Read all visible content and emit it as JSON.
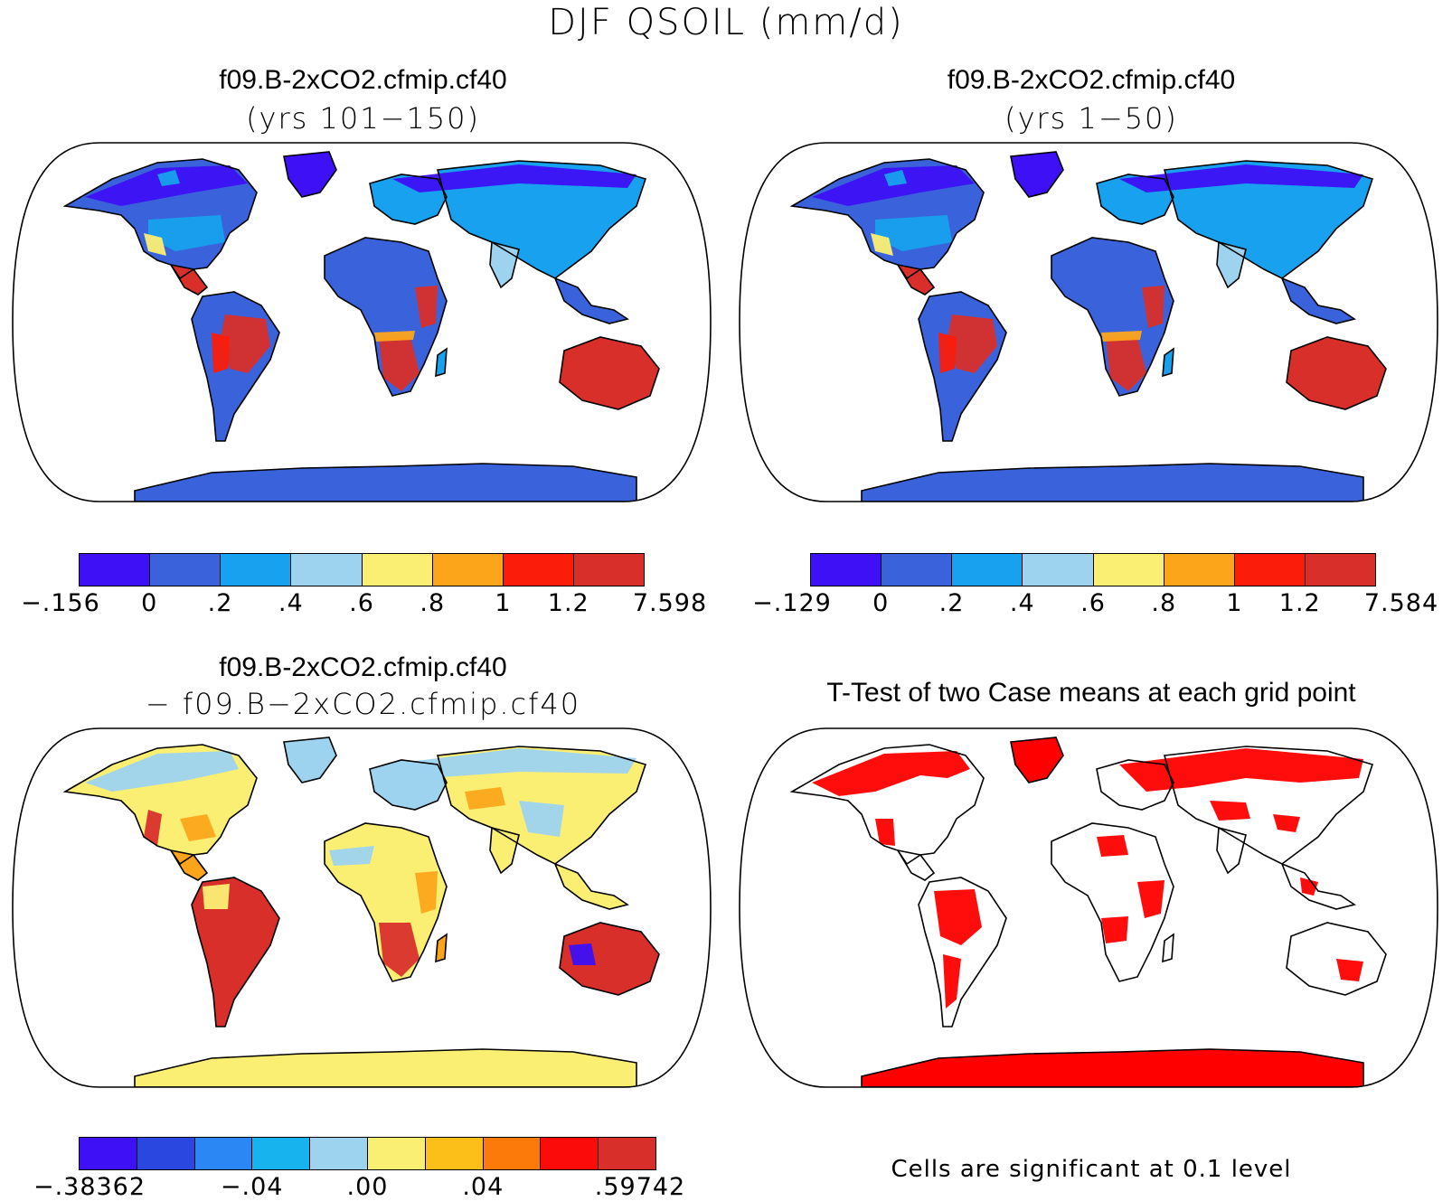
{
  "figure_title": "DJF QSOIL (mm/d)",
  "panels": [
    {
      "title": "f09.B-2xCO2.cfmip.cf40",
      "subtitle": "(yrs 101−150)",
      "kind": "field",
      "colorbar": {
        "colors": [
          "#3d10f5",
          "#3a63db",
          "#17a1ee",
          "#9dd3ef",
          "#fbef73",
          "#fca51a",
          "#fb1c0a",
          "#d82f2b"
        ],
        "labels": [
          "−.156",
          "0",
          ".2",
          ".4",
          ".6",
          ".8",
          "1",
          "1.2",
          "7.598"
        ]
      }
    },
    {
      "title": "f09.B-2xCO2.cfmip.cf40",
      "subtitle": "(yrs 1−50)",
      "kind": "field",
      "colorbar": {
        "colors": [
          "#3d10f5",
          "#3a63db",
          "#17a1ee",
          "#9dd3ef",
          "#fbef73",
          "#fca51a",
          "#fb1c0a",
          "#d82f2b"
        ],
        "labels": [
          "−.129",
          "0",
          ".2",
          ".4",
          ".6",
          ".8",
          "1",
          "1.2",
          "7.584"
        ]
      }
    },
    {
      "title": "f09.B-2xCO2.cfmip.cf40",
      "subtitle": "− f09.B−2xCO2.cfmip.cf40",
      "kind": "difference",
      "colorbar": {
        "colors": [
          "#3d10f5",
          "#2a47e0",
          "#2a87f4",
          "#17b3ee",
          "#9dd3ef",
          "#fbef73",
          "#fcbf1a",
          "#fc7a0a",
          "#fb0c0a",
          "#d82f2b"
        ],
        "labels": [
          "−.38362",
          "−.04",
          ".00",
          ".04",
          ".59742"
        ]
      }
    },
    {
      "title": "T-Test of two Case means at each grid point",
      "kind": "significance",
      "note": "Cells are significant at 0.1 level",
      "significant_color": "#ff0000"
    }
  ]
}
